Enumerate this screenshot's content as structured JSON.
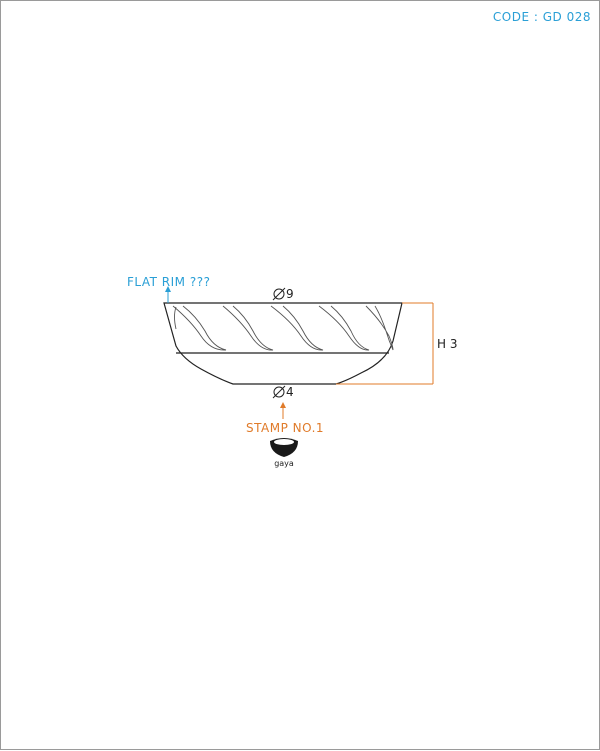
{
  "code_label": "CODE : GD 028",
  "rim_note": "FLAT RIM ???",
  "top_diameter": "9",
  "base_diameter": "4",
  "height_label": "H 3",
  "stamp_label": "STAMP NO.1",
  "stamp_brand": "gaya",
  "colors": {
    "note_blue": "#2a9fd6",
    "stamp_orange": "#e07b2a",
    "outline": "#222222"
  }
}
